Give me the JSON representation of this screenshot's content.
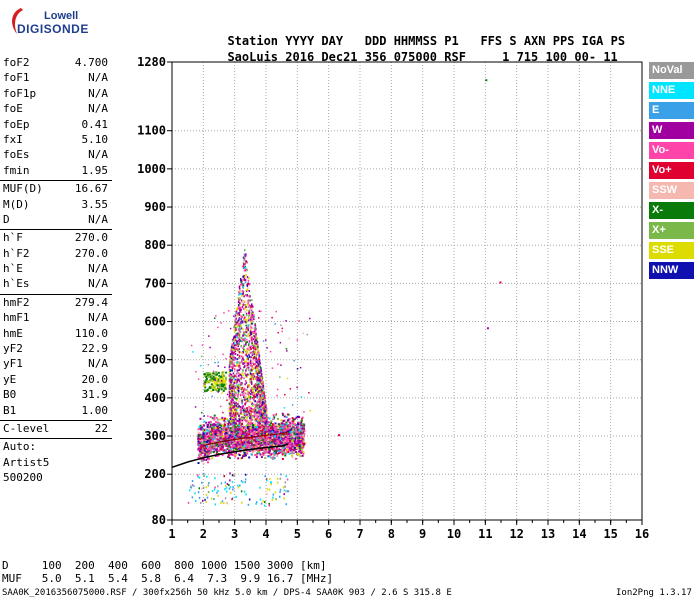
{
  "logo": {
    "line1": "Lowell",
    "line2": "DIGISONDE"
  },
  "header": {
    "col_labels": [
      "Station",
      "YYYY",
      "DAY",
      "DDD",
      "HHMMSS",
      "P1",
      "FFS",
      "S",
      "AXN",
      "PPS",
      "IGA",
      "PS"
    ],
    "values": [
      "SaoLuis",
      "2016",
      "Dec21",
      "356",
      "075000",
      "RSF",
      "",
      "1",
      "715",
      "100",
      "00-",
      "11"
    ]
  },
  "params": {
    "group1": [
      {
        "k": "foF2",
        "v": "4.700"
      },
      {
        "k": "foF1",
        "v": "N/A"
      },
      {
        "k": "foF1p",
        "v": "N/A"
      },
      {
        "k": "foE",
        "v": "N/A"
      },
      {
        "k": "foEp",
        "v": "0.41"
      },
      {
        "k": "fxI",
        "v": "5.10"
      },
      {
        "k": "foEs",
        "v": "N/A"
      },
      {
        "k": "fmin",
        "v": "1.95"
      }
    ],
    "group2": [
      {
        "k": "MUF(D)",
        "v": "16.67"
      },
      {
        "k": "M(D)",
        "v": "3.55"
      },
      {
        "k": "D",
        "v": "N/A"
      }
    ],
    "group3": [
      {
        "k": "h`F",
        "v": "270.0"
      },
      {
        "k": "h`F2",
        "v": "270.0"
      },
      {
        "k": "h`E",
        "v": "N/A"
      },
      {
        "k": "h`Es",
        "v": "N/A"
      }
    ],
    "group4": [
      {
        "k": "hmF2",
        "v": "279.4"
      },
      {
        "k": "hmF1",
        "v": "N/A"
      },
      {
        "k": "hmE",
        "v": "110.0"
      },
      {
        "k": "yF2",
        "v": "22.9"
      },
      {
        "k": "yF1",
        "v": "N/A"
      },
      {
        "k": "yE",
        "v": "20.0"
      },
      {
        "k": "B0",
        "v": "31.9"
      },
      {
        "k": "B1",
        "v": "1.00"
      }
    ],
    "group5": [
      {
        "k": "C-level",
        "v": "22"
      }
    ],
    "auto": [
      "Auto:",
      "Artist5",
      "500200"
    ]
  },
  "legend": [
    {
      "label": "NoVal",
      "color": "#999999"
    },
    {
      "label": "NNE",
      "color": "#00e5ff"
    },
    {
      "label": "E",
      "color": "#3aa0e8"
    },
    {
      "label": "W",
      "color": "#a000a0"
    },
    {
      "label": "Vo-",
      "color": "#ff44aa"
    },
    {
      "label": "Vo+",
      "color": "#e00030"
    },
    {
      "label": "SSW",
      "color": "#f4b8b0"
    },
    {
      "label": "X-",
      "color": "#0a7a0a"
    },
    {
      "label": "X+",
      "color": "#7ab84a"
    },
    {
      "label": "SSE",
      "color": "#dcdc00"
    },
    {
      "label": "NNW",
      "color": "#1010b0"
    }
  ],
  "footer": {
    "row1": "D     100  200  400  600  800 1000 1500 3000 [km]",
    "row2": "MUF   5.0  5.1  5.4  5.8  6.4  7.3  9.9 16.7 [MHz]",
    "row3_left": "SAA0K_2016356075000.RSF / 300fx256h 50 kHz 5.0 km / DPS-4 SAA0K 903 / 2.6 S 315.8 E",
    "row3_right": "Ion2Png 1.3.17"
  },
  "chart_data": {
    "type": "scatter",
    "x_ticks": [
      1,
      2,
      3,
      4,
      5,
      6,
      7,
      8,
      9,
      10,
      11,
      12,
      13,
      14,
      15,
      16
    ],
    "y_ticks": [
      80,
      200,
      300,
      400,
      500,
      600,
      700,
      800,
      900,
      1000,
      1100,
      1280
    ],
    "xlim": [
      1,
      16
    ],
    "ylim": [
      80,
      1280
    ],
    "grid": true,
    "clusters": [
      {
        "name": "F-trace",
        "x_range": [
          1.8,
          5.2
        ],
        "y_range": [
          260,
          360
        ],
        "density": "high"
      },
      {
        "name": "spread-F",
        "x_range": [
          2.8,
          4.0
        ],
        "y_range": [
          360,
          800
        ],
        "density": "medium"
      },
      {
        "name": "E-echo",
        "x_range": [
          1.5,
          3.8
        ],
        "y_range": [
          120,
          200
        ],
        "density": "low"
      }
    ],
    "isolated_points": [
      {
        "x": 11.0,
        "y": 1235
      },
      {
        "x": 11.45,
        "y": 705
      },
      {
        "x": 11.05,
        "y": 585
      },
      {
        "x": 6.3,
        "y": 305
      }
    ],
    "profile_curve": [
      {
        "x": 1.0,
        "y": 218
      },
      {
        "x": 1.5,
        "y": 232
      },
      {
        "x": 2.0,
        "y": 243
      },
      {
        "x": 2.5,
        "y": 252
      },
      {
        "x": 3.0,
        "y": 259
      },
      {
        "x": 3.5,
        "y": 265
      },
      {
        "x": 4.0,
        "y": 270
      },
      {
        "x": 4.5,
        "y": 274
      },
      {
        "x": 4.7,
        "y": 279
      }
    ]
  }
}
